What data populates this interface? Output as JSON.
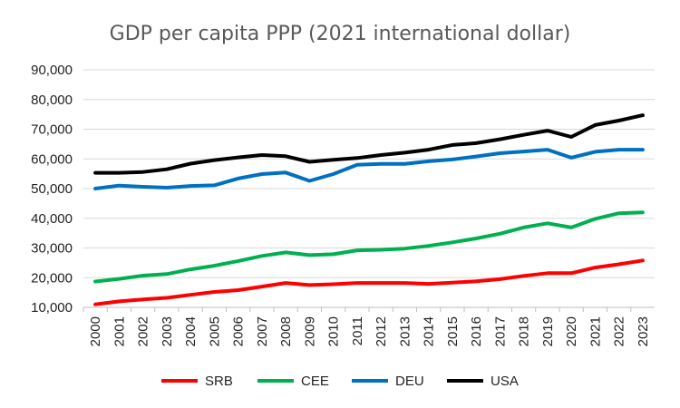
{
  "chart_data": {
    "type": "line",
    "title": "GDP per capita PPP (2021 international dollar)",
    "xlabel": "",
    "ylabel": "",
    "ylim": [
      10000,
      90000
    ],
    "y_ticks": [
      10000,
      20000,
      30000,
      40000,
      50000,
      60000,
      70000,
      80000,
      90000
    ],
    "y_tick_labels": [
      "10,000",
      "20,000",
      "30,000",
      "40,000",
      "50,000",
      "60,000",
      "70,000",
      "80,000",
      "90,000"
    ],
    "grid": true,
    "legend_position": "bottom",
    "categories": [
      "2000",
      "2001",
      "2002",
      "2003",
      "2004",
      "2005",
      "2006",
      "2007",
      "2008",
      "2009",
      "2010",
      "2011",
      "2012",
      "2013",
      "2014",
      "2015",
      "2016",
      "2017",
      "2018",
      "2019",
      "2020",
      "2021",
      "2022",
      "2023"
    ],
    "series": [
      {
        "name": "SRB",
        "color": "#ff0000",
        "values": [
          11000,
          12000,
          12700,
          13200,
          14200,
          15200,
          15800,
          17000,
          18200,
          17500,
          17800,
          18200,
          18200,
          18200,
          17900,
          18300,
          18800,
          19500,
          20600,
          21500,
          21500,
          23400,
          24500,
          25800
        ]
      },
      {
        "name": "CEE",
        "color": "#00b050",
        "values": [
          18700,
          19600,
          20700,
          21200,
          22800,
          24000,
          25600,
          27300,
          28500,
          27600,
          27900,
          29200,
          29400,
          29800,
          30700,
          31900,
          33200,
          34800,
          36900,
          38300,
          36900,
          39800,
          41700,
          42000
        ]
      },
      {
        "name": "DEU",
        "color": "#0070c0",
        "values": [
          50000,
          51000,
          50600,
          50300,
          50900,
          51100,
          53400,
          54900,
          55400,
          52600,
          54900,
          58000,
          58300,
          58300,
          59200,
          59800,
          60800,
          61900,
          62500,
          63100,
          60400,
          62400,
          63100,
          63100
        ]
      },
      {
        "name": "USA",
        "color": "#000000",
        "values": [
          55300,
          55300,
          55600,
          56500,
          58400,
          59600,
          60500,
          61300,
          60900,
          59000,
          59700,
          60300,
          61300,
          62100,
          63100,
          64700,
          65300,
          66600,
          68100,
          69500,
          67400,
          71400,
          72900,
          74700
        ]
      }
    ]
  }
}
